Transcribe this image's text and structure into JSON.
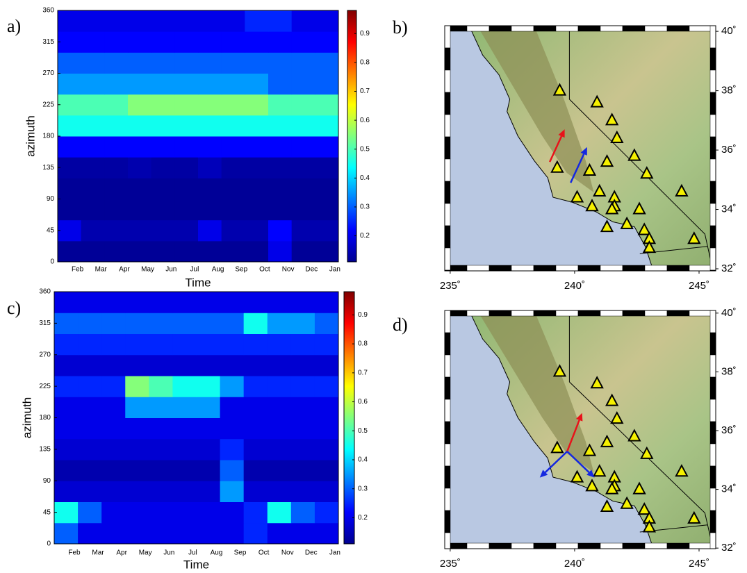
{
  "chart_data": [
    {
      "type": "heatmap",
      "panel_label": "a)",
      "x_label": "Time",
      "y_label": "azimuth",
      "categories": [
        "Feb",
        "Mar",
        "Apr",
        "May",
        "Jun",
        "Jul",
        "Aug",
        "Sep",
        "Oct",
        "Nov",
        "Dec",
        "Jan"
      ],
      "ylim": [
        0,
        360
      ],
      "yticks": [
        0,
        45,
        90,
        135,
        180,
        225,
        270,
        315,
        360
      ],
      "row_edges": [
        0,
        30,
        60,
        90,
        120,
        150,
        180,
        210,
        240,
        270,
        300,
        330,
        360
      ],
      "clim": [
        0.11,
        0.98
      ],
      "cticks": [
        0.2,
        0.3,
        0.4,
        0.5,
        0.6,
        0.7,
        0.8,
        0.9
      ],
      "z": [
        [
          0.13,
          0.13,
          0.13,
          0.13,
          0.13,
          0.13,
          0.13,
          0.13,
          0.13,
          0.2,
          0.13,
          0.13
        ],
        [
          0.2,
          0.15,
          0.15,
          0.15,
          0.15,
          0.15,
          0.2,
          0.15,
          0.15,
          0.22,
          0.15,
          0.15
        ],
        [
          0.13,
          0.13,
          0.13,
          0.13,
          0.13,
          0.13,
          0.13,
          0.13,
          0.13,
          0.13,
          0.13,
          0.13
        ],
        [
          0.13,
          0.13,
          0.13,
          0.13,
          0.13,
          0.13,
          0.13,
          0.13,
          0.13,
          0.13,
          0.13,
          0.13
        ],
        [
          0.14,
          0.14,
          0.14,
          0.15,
          0.14,
          0.14,
          0.16,
          0.14,
          0.14,
          0.14,
          0.14,
          0.14
        ],
        [
          0.22,
          0.22,
          0.22,
          0.22,
          0.22,
          0.22,
          0.22,
          0.22,
          0.22,
          0.22,
          0.22,
          0.22
        ],
        [
          0.45,
          0.45,
          0.45,
          0.45,
          0.45,
          0.45,
          0.45,
          0.45,
          0.45,
          0.45,
          0.45,
          0.45
        ],
        [
          0.5,
          0.5,
          0.5,
          0.55,
          0.55,
          0.55,
          0.55,
          0.55,
          0.55,
          0.5,
          0.5,
          0.5
        ],
        [
          0.35,
          0.35,
          0.35,
          0.35,
          0.35,
          0.35,
          0.35,
          0.35,
          0.35,
          0.3,
          0.3,
          0.3
        ],
        [
          0.3,
          0.3,
          0.3,
          0.3,
          0.3,
          0.3,
          0.3,
          0.3,
          0.3,
          0.3,
          0.3,
          0.3
        ],
        [
          0.22,
          0.22,
          0.22,
          0.22,
          0.22,
          0.22,
          0.22,
          0.22,
          0.22,
          0.22,
          0.22,
          0.22
        ],
        [
          0.2,
          0.2,
          0.2,
          0.2,
          0.2,
          0.2,
          0.2,
          0.2,
          0.25,
          0.25,
          0.2,
          0.2
        ]
      ]
    },
    {
      "type": "map",
      "panel_label": "b)",
      "xlim": [
        234.78,
        245.67
      ],
      "ylim": [
        31.93,
        40.19
      ],
      "xticks": [
        {
          "value": 235,
          "label": "235˚"
        },
        {
          "value": 240,
          "label": "240˚"
        },
        {
          "value": 245,
          "label": "245˚"
        }
      ],
      "yticks": [
        {
          "value": 32,
          "label": "32˚"
        },
        {
          "value": 34,
          "label": "34˚"
        },
        {
          "value": 36,
          "label": "36˚"
        },
        {
          "value": 38,
          "label": "38˚"
        },
        {
          "value": 40,
          "label": "40˚"
        }
      ],
      "stations": {
        "lon": [
          239.4,
          240.9,
          241.5,
          241.7,
          241.3,
          242.4,
          242.9,
          239.3,
          240.6,
          241.0,
          241.6,
          241.6,
          241.5,
          240.1,
          240.7,
          242.6,
          242.1,
          241.3,
          242.8,
          243.0,
          243.0,
          244.3,
          244.8
        ],
        "lat": [
          38.0,
          37.6,
          37.0,
          36.4,
          35.6,
          35.8,
          35.2,
          35.4,
          35.3,
          34.6,
          34.4,
          34.1,
          34.0,
          34.4,
          34.1,
          34.0,
          33.5,
          33.4,
          33.3,
          33.0,
          32.7,
          34.6,
          33.0
        ]
      },
      "arrows": [
        {
          "color": "#e8121a",
          "from": [
            239.0,
            35.6
          ],
          "to": [
            239.6,
            36.7
          ]
        },
        {
          "color": "#1428e0",
          "from": [
            239.84,
            34.9
          ],
          "to": [
            240.5,
            36.1
          ]
        }
      ]
    },
    {
      "type": "heatmap",
      "panel_label": "c)",
      "x_label": "Time",
      "y_label": "azimuth",
      "categories": [
        "Feb",
        "Mar",
        "Apr",
        "May",
        "Jun",
        "Jul",
        "Aug",
        "Sep",
        "Oct",
        "Nov",
        "Dec",
        "Jan"
      ],
      "ylim": [
        0,
        360
      ],
      "yticks": [
        0,
        45,
        90,
        135,
        180,
        225,
        270,
        315,
        360
      ],
      "row_edges": [
        0,
        30,
        60,
        90,
        120,
        150,
        180,
        210,
        240,
        270,
        300,
        330,
        360
      ],
      "clim": [
        0.11,
        0.98
      ],
      "cticks": [
        0.2,
        0.3,
        0.4,
        0.5,
        0.6,
        0.7,
        0.8,
        0.9
      ],
      "z": [
        [
          0.3,
          0.2,
          0.2,
          0.2,
          0.2,
          0.2,
          0.2,
          0.2,
          0.25,
          0.2,
          0.2,
          0.2
        ],
        [
          0.45,
          0.3,
          0.2,
          0.2,
          0.2,
          0.2,
          0.2,
          0.2,
          0.25,
          0.45,
          0.3,
          0.25
        ],
        [
          0.18,
          0.18,
          0.18,
          0.18,
          0.18,
          0.18,
          0.18,
          0.35,
          0.18,
          0.18,
          0.18,
          0.18
        ],
        [
          0.15,
          0.15,
          0.15,
          0.15,
          0.15,
          0.15,
          0.15,
          0.3,
          0.15,
          0.15,
          0.15,
          0.15
        ],
        [
          0.18,
          0.18,
          0.18,
          0.18,
          0.18,
          0.18,
          0.18,
          0.25,
          0.18,
          0.18,
          0.18,
          0.18
        ],
        [
          0.2,
          0.2,
          0.2,
          0.2,
          0.2,
          0.2,
          0.2,
          0.2,
          0.2,
          0.2,
          0.2,
          0.2
        ],
        [
          0.2,
          0.2,
          0.2,
          0.35,
          0.35,
          0.35,
          0.35,
          0.2,
          0.2,
          0.2,
          0.2,
          0.2
        ],
        [
          0.25,
          0.25,
          0.25,
          0.55,
          0.5,
          0.45,
          0.45,
          0.35,
          0.25,
          0.25,
          0.25,
          0.25
        ],
        [
          0.18,
          0.18,
          0.18,
          0.18,
          0.18,
          0.18,
          0.18,
          0.18,
          0.18,
          0.18,
          0.18,
          0.18
        ],
        [
          0.25,
          0.25,
          0.25,
          0.25,
          0.25,
          0.25,
          0.25,
          0.25,
          0.25,
          0.25,
          0.25,
          0.25
        ],
        [
          0.3,
          0.3,
          0.3,
          0.3,
          0.3,
          0.3,
          0.3,
          0.3,
          0.45,
          0.35,
          0.35,
          0.3
        ],
        [
          0.2,
          0.2,
          0.2,
          0.2,
          0.2,
          0.2,
          0.2,
          0.2,
          0.2,
          0.2,
          0.2,
          0.2
        ]
      ]
    },
    {
      "type": "map",
      "panel_label": "d)",
      "xlim": [
        234.78,
        245.67
      ],
      "ylim": [
        31.98,
        40.09
      ],
      "xticks": [
        {
          "value": 235,
          "label": "235˚"
        },
        {
          "value": 240,
          "label": "240˚"
        },
        {
          "value": 245,
          "label": "245˚"
        }
      ],
      "yticks": [
        {
          "value": 32,
          "label": "32˚"
        },
        {
          "value": 34,
          "label": "34˚"
        },
        {
          "value": 36,
          "label": "36˚"
        },
        {
          "value": 38,
          "label": "38˚"
        },
        {
          "value": 40,
          "label": "40˚"
        }
      ],
      "stations": {
        "lon": [
          239.4,
          240.9,
          241.5,
          241.7,
          241.3,
          242.4,
          242.9,
          239.3,
          240.6,
          241.0,
          241.6,
          241.6,
          241.5,
          240.1,
          240.7,
          242.6,
          242.1,
          241.3,
          242.8,
          243.0,
          243.0,
          244.3,
          244.8
        ],
        "lat": [
          38.0,
          37.6,
          37.0,
          36.4,
          35.6,
          35.8,
          35.2,
          35.4,
          35.3,
          34.6,
          34.4,
          34.1,
          34.0,
          34.4,
          34.1,
          34.0,
          33.5,
          33.4,
          33.3,
          33.0,
          32.7,
          34.6,
          33.0
        ]
      },
      "arrows": [
        {
          "color": "#e8121a",
          "from": [
            239.7,
            35.29
          ],
          "to": [
            240.3,
            36.6
          ]
        },
        {
          "color": "#1428e0",
          "from": [
            239.7,
            35.29
          ],
          "to": [
            238.6,
            34.4
          ]
        },
        {
          "color": "#1428e0",
          "from": [
            239.7,
            35.29
          ],
          "to": [
            240.8,
            34.4
          ]
        }
      ]
    }
  ]
}
